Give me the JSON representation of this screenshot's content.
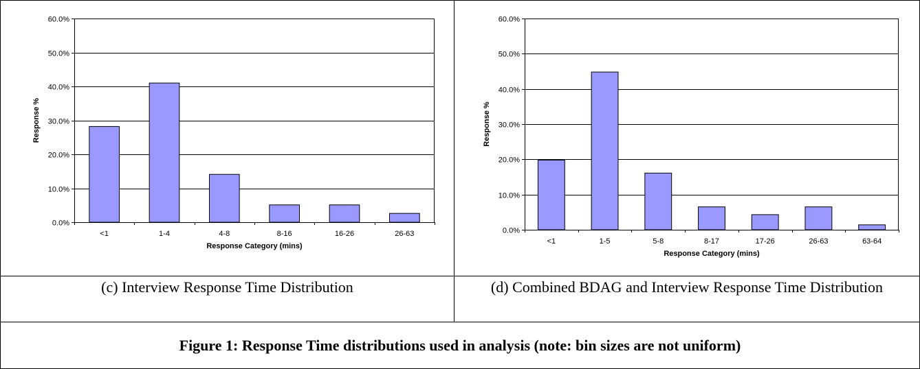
{
  "chart_data": [
    {
      "type": "bar",
      "title": "",
      "xlabel": "Response Category (mins)",
      "ylabel": "Response %",
      "ylim": [
        0,
        60
      ],
      "ytick_labels": [
        "0.0%",
        "10.0%",
        "20.0%",
        "30.0%",
        "40.0%",
        "50.0%",
        "60.0%"
      ],
      "categories": [
        "<1",
        "1-4",
        "4-8",
        "8-16",
        "16-26",
        "26-63"
      ],
      "values": [
        28.2,
        41.0,
        14.1,
        5.1,
        5.1,
        2.6
      ],
      "grid": true,
      "bar_color": "#9999ff"
    },
    {
      "type": "bar",
      "title": "",
      "xlabel": "Response Category (mins)",
      "ylabel": "Response %",
      "ylim": [
        0,
        60
      ],
      "ytick_labels": [
        "0.0%",
        "10.0%",
        "20.0%",
        "30.0%",
        "40.0%",
        "50.0%",
        "60.0%"
      ],
      "categories": [
        "<1",
        "1-5",
        "5-8",
        "8-17",
        "17-26",
        "26-63",
        "63-64"
      ],
      "values": [
        19.8,
        44.8,
        16.1,
        6.5,
        4.3,
        6.5,
        1.4
      ],
      "grid": true,
      "bar_color": "#9999ff"
    }
  ],
  "captions": {
    "c": "(c) Interview Response Time Distribution",
    "d": "(d) Combined BDAG and Interview Response Time Distribution",
    "figure": "Figure 1: Response Time distributions used in analysis (note: bin sizes are not uniform)"
  }
}
